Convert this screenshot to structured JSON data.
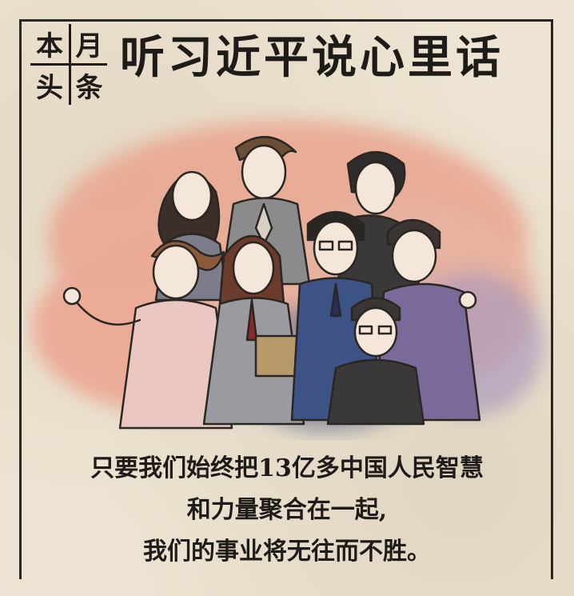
{
  "logo": {
    "c1": "本",
    "c2": "月",
    "c3": "头",
    "c4": "条"
  },
  "header": {
    "title": "听习近平说心里话"
  },
  "caption": {
    "line1": "只要我们始终把13亿多中国人民智慧",
    "line2": "和力量聚合在一起,",
    "line3": "我们的事业将无往而不胜。"
  },
  "illustration": {
    "icon": "group-of-people-illustration",
    "colors": {
      "wash": "#e9a48f",
      "ink": "#2a2622",
      "paper": "#ede4d3"
    }
  }
}
